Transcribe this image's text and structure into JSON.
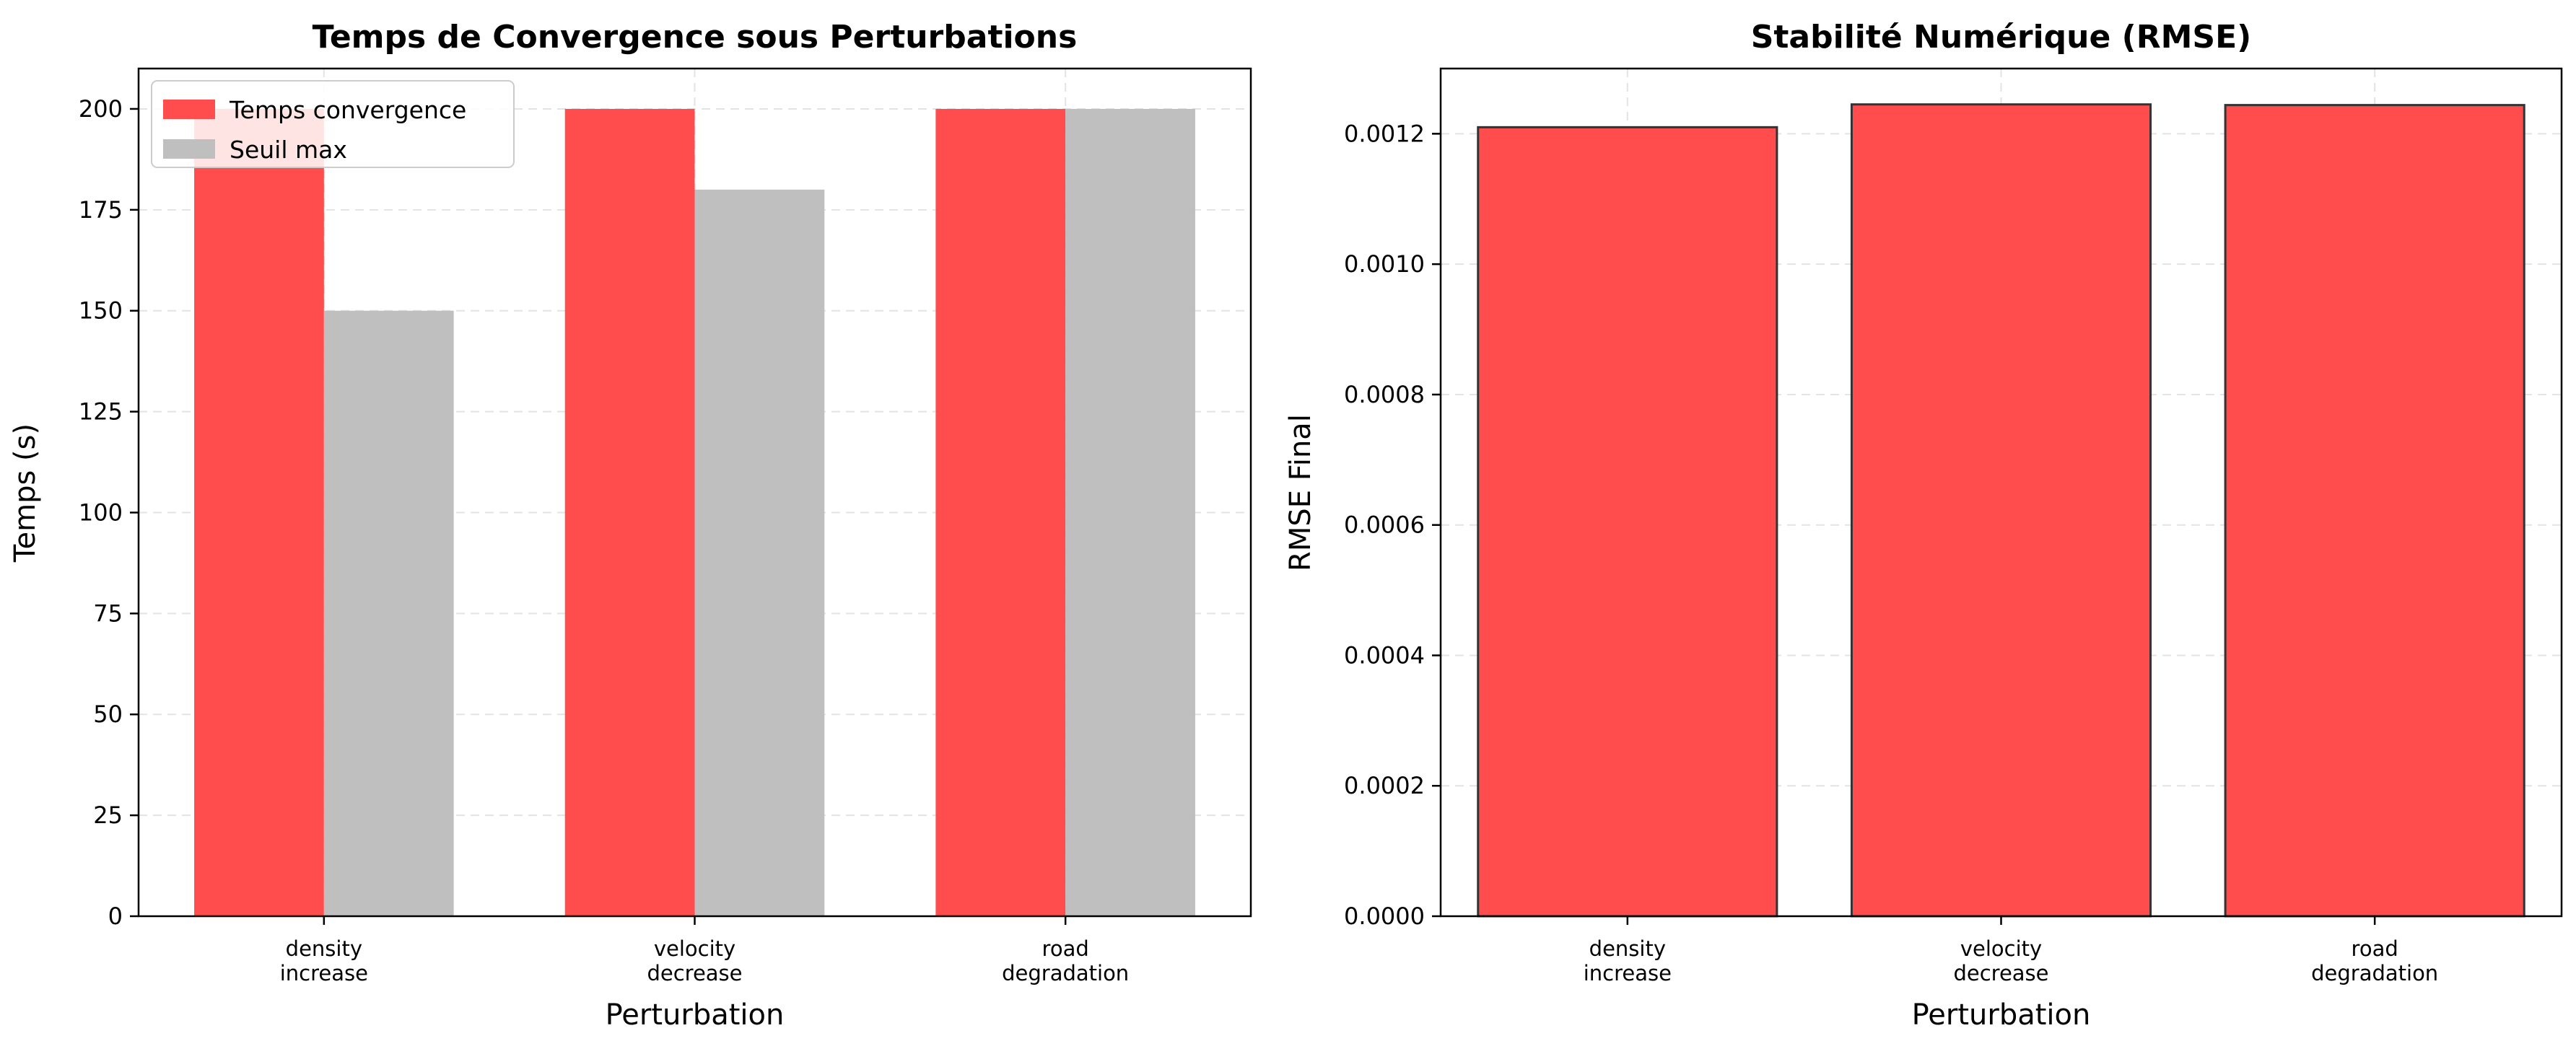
{
  "chart_data": [
    {
      "type": "bar",
      "title": "Temps de Convergence sous Perturbations",
      "xlabel": "Perturbation",
      "ylabel": "Temps (s)",
      "categories": [
        [
          "density",
          "increase"
        ],
        [
          "velocity",
          "decrease"
        ],
        [
          "road",
          "degradation"
        ]
      ],
      "series": [
        {
          "name": "Temps convergence",
          "values": [
            200,
            200,
            200
          ],
          "color": "#ff4c4c"
        },
        {
          "name": "Seuil max",
          "values": [
            150,
            180,
            200
          ],
          "color": "#bfbfbf"
        }
      ],
      "ylim": [
        0,
        210
      ],
      "yticks": [
        "0",
        "25",
        "50",
        "75",
        "100",
        "125",
        "150",
        "175",
        "200"
      ],
      "ytick_values": [
        0,
        25,
        50,
        75,
        100,
        125,
        150,
        175,
        200
      ],
      "grid": true,
      "legend_position": "top-left"
    },
    {
      "type": "bar",
      "title": "Stabilité Numérique (RMSE)",
      "xlabel": "Perturbation",
      "ylabel": "RMSE Final",
      "categories": [
        [
          "density",
          "increase"
        ],
        [
          "velocity",
          "decrease"
        ],
        [
          "road",
          "degradation"
        ]
      ],
      "series": [
        {
          "values": [
            0.00121,
            0.001245,
            0.001244
          ],
          "color": "#ff4c4c",
          "edgecolor": "#333333"
        }
      ],
      "ylim": [
        0,
        0.0013
      ],
      "yticks": [
        "0.0000",
        "0.0002",
        "0.0004",
        "0.0006",
        "0.0008",
        "0.0010",
        "0.0012"
      ],
      "ytick_values": [
        0,
        0.0002,
        0.0004,
        0.0006,
        0.0008,
        0.001,
        0.0012
      ],
      "grid": true
    }
  ]
}
